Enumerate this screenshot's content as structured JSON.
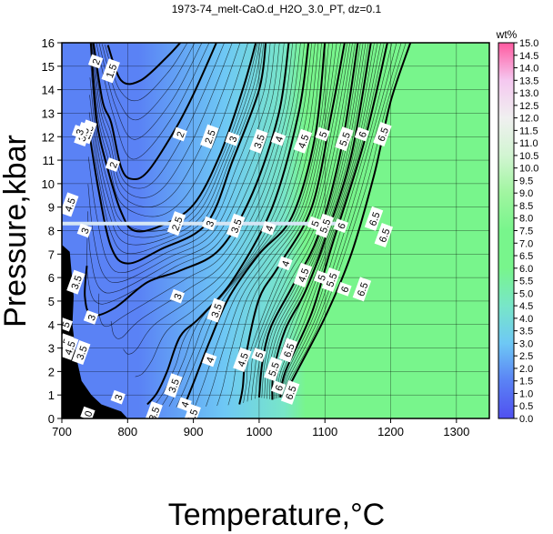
{
  "chart_data": {
    "type": "contour",
    "title": "1973-74_melt-CaO.d_H2O_3.0_PT, dz=0.1",
    "xlabel": "Temperature,°C",
    "ylabel": "Pressure,kbar",
    "xlim": [
      700,
      1350
    ],
    "ylim": [
      0,
      16
    ],
    "x_ticks": [
      "700",
      "800",
      "900",
      "1000",
      "1100",
      "1200",
      "1300"
    ],
    "y_ticks": [
      "0",
      "1",
      "2",
      "3",
      "4",
      "5",
      "6",
      "7",
      "8",
      "9",
      "10",
      "11",
      "12",
      "13",
      "14",
      "15",
      "16"
    ],
    "grid": true,
    "colorbar": {
      "title": "wt%",
      "range": [
        0.0,
        15.0
      ],
      "ticks": [
        "0.0",
        "0.5",
        "1.0",
        "1.5",
        "2.0",
        "2.5",
        "3.0",
        "3.5",
        "4.0",
        "4.5",
        "5.0",
        "5.5",
        "6.0",
        "6.5",
        "7.0",
        "7.5",
        "8.0",
        "8.5",
        "9.0",
        "9.5",
        "10.0",
        "10.5",
        "11.0",
        "11.5",
        "12.0",
        "12.5",
        "13.0",
        "13.5",
        "14.0",
        "14.5",
        "15.0"
      ],
      "colors": [
        "#5050f0",
        "#5a82f5",
        "#6ec8f5",
        "#78e6c8",
        "#78f58c",
        "#78f58c",
        "#a0f5a0",
        "#d2f5d2",
        "#f0f0f0",
        "#f5c8f0",
        "#ff5aa0"
      ]
    },
    "saturation_value": 6.7,
    "contours": [
      {
        "level": "1.5",
        "points": [
          [
            770,
            15.9
          ],
          [
            790,
            14.4
          ],
          [
            820,
            14.4
          ],
          [
            860,
            15.4
          ],
          [
            880,
            16
          ]
        ]
      },
      {
        "level": "2",
        "points": [
          [
            748,
            16
          ],
          [
            762,
            13.5
          ],
          [
            775,
            12.6
          ],
          [
            790,
            10.7
          ],
          [
            806,
            10.2
          ],
          [
            830,
            10.5
          ],
          [
            870,
            12.2
          ],
          [
            900,
            13.8
          ],
          [
            935,
            16
          ]
        ]
      },
      {
        "level": "2.5",
        "points": [
          [
            744,
            16
          ],
          [
            753,
            12.7
          ],
          [
            770,
            10.6
          ],
          [
            790,
            8.8
          ],
          [
            810,
            8.0
          ],
          [
            850,
            8.2
          ],
          [
            900,
            9.1
          ],
          [
            940,
            11.2
          ],
          [
            975,
            14
          ],
          [
            995,
            16
          ]
        ]
      },
      {
        "level": "3",
        "points": [
          [
            741,
            12.3
          ],
          [
            756,
            9.7
          ],
          [
            775,
            7.3
          ],
          [
            800,
            6.6
          ],
          [
            850,
            7.2
          ],
          [
            920,
            8.3
          ],
          [
            960,
            11
          ],
          [
            1000,
            14
          ],
          [
            1010,
            16
          ]
        ]
      },
      {
        "level": "3.5",
        "points": [
          [
            738,
            6.5
          ],
          [
            735,
            5.2
          ],
          [
            745,
            4.4
          ],
          [
            780,
            4.7
          ],
          [
            830,
            5.8
          ],
          [
            880,
            6.3
          ],
          [
            940,
            7.2
          ],
          [
            990,
            9.6
          ],
          [
            1030,
            13
          ],
          [
            1045,
            16
          ]
        ]
      },
      {
        "level": "3.5",
        "points": [
          [
            830,
            0.6
          ],
          [
            845,
            1.1
          ],
          [
            860,
            2.0
          ],
          [
            880,
            3.5
          ],
          [
            910,
            4.3
          ],
          [
            960,
            5.9
          ],
          [
            1020,
            9
          ],
          [
            1060,
            13
          ],
          [
            1075,
            16
          ]
        ]
      },
      {
        "level": "4",
        "points": [
          [
            885,
            0.45
          ],
          [
            900,
            1.5
          ],
          [
            925,
            3.3
          ],
          [
            955,
            5.2
          ],
          [
            1000,
            7.0
          ],
          [
            1050,
            8.6
          ],
          [
            1085,
            12
          ],
          [
            1100,
            16
          ]
        ]
      },
      {
        "level": "4.5",
        "points": [
          [
            970,
            0.6
          ],
          [
            975,
            1.3
          ],
          [
            980,
            2.7
          ],
          [
            1000,
            5.1
          ],
          [
            1030,
            6.5
          ],
          [
            1080,
            9
          ],
          [
            1110,
            13
          ],
          [
            1130,
            16
          ]
        ]
      },
      {
        "level": "5",
        "points": [
          [
            1000,
            0.9
          ],
          [
            1005,
            2.4
          ],
          [
            1018,
            3.9
          ],
          [
            1050,
            5.6
          ],
          [
            1090,
            7.8
          ],
          [
            1125,
            11.5
          ],
          [
            1150,
            16
          ]
        ]
      },
      {
        "level": "5.5",
        "points": [
          [
            1020,
            0.8
          ],
          [
            1022,
            2.0
          ],
          [
            1040,
            3.8
          ],
          [
            1070,
            5.4
          ],
          [
            1100,
            7.6
          ],
          [
            1140,
            11.2
          ],
          [
            1170,
            16
          ]
        ]
      },
      {
        "level": "6",
        "points": [
          [
            1032,
            0.9
          ],
          [
            1040,
            2.0
          ],
          [
            1080,
            4.5
          ],
          [
            1110,
            7.3
          ],
          [
            1160,
            11.8
          ],
          [
            1195,
            16
          ]
        ]
      },
      {
        "level": "6.5",
        "points": [
          [
            1040,
            0.9
          ],
          [
            1050,
            1.6
          ],
          [
            1100,
            4.3
          ],
          [
            1140,
            7.0
          ],
          [
            1175,
            10.4
          ],
          [
            1200,
            13.5
          ],
          [
            1230,
            16
          ]
        ]
      }
    ],
    "labels": [
      {
        "text": "1.5",
        "x": 775,
        "y": 14.8
      },
      {
        "text": "2",
        "x": 752,
        "y": 15.2
      },
      {
        "text": "2",
        "x": 880,
        "y": 12.1
      },
      {
        "text": "2",
        "x": 778,
        "y": 10.8
      },
      {
        "text": "2.5",
        "x": 925,
        "y": 12.0
      },
      {
        "text": "3",
        "x": 960,
        "y": 11.9
      },
      {
        "text": "3.5",
        "x": 1000,
        "y": 11.8
      },
      {
        "text": "4",
        "x": 1030,
        "y": 11.9
      },
      {
        "text": "4.5",
        "x": 1067,
        "y": 11.8
      },
      {
        "text": "5",
        "x": 1097,
        "y": 12.1
      },
      {
        "text": "5.5",
        "x": 1130,
        "y": 11.9
      },
      {
        "text": "6",
        "x": 1157,
        "y": 12.1
      },
      {
        "text": "6.5",
        "x": 1188,
        "y": 12.1
      },
      {
        "text": "2.5",
        "x": 740,
        "y": 12.2
      },
      {
        "text": "3.5",
        "x": 733,
        "y": 12.1
      },
      {
        "text": "3",
        "x": 727,
        "y": 12.2
      },
      {
        "text": "4.5",
        "x": 712,
        "y": 9.1
      },
      {
        "text": "2.5",
        "x": 875,
        "y": 8.3
      },
      {
        "text": "3",
        "x": 925,
        "y": 8.3
      },
      {
        "text": "3.5",
        "x": 965,
        "y": 8.2
      },
      {
        "text": "4",
        "x": 1015,
        "y": 8.1
      },
      {
        "text": "5",
        "x": 1085,
        "y": 8.3
      },
      {
        "text": "5.5",
        "x": 1100,
        "y": 8.2
      },
      {
        "text": "6",
        "x": 1125,
        "y": 8.2
      },
      {
        "text": "6.5",
        "x": 1175,
        "y": 8.5
      },
      {
        "text": "6.5",
        "x": 1190,
        "y": 7.8
      },
      {
        "text": "3",
        "x": 735,
        "y": 8.0
      },
      {
        "text": "3.5",
        "x": 722,
        "y": 5.8
      },
      {
        "text": "3",
        "x": 876,
        "y": 5.2
      },
      {
        "text": "3.5",
        "x": 935,
        "y": 4.6
      },
      {
        "text": "4",
        "x": 1040,
        "y": 6.6
      },
      {
        "text": "4.5",
        "x": 1067,
        "y": 6.1
      },
      {
        "text": "5",
        "x": 1095,
        "y": 6.0
      },
      {
        "text": "5.5",
        "x": 1110,
        "y": 5.9
      },
      {
        "text": "6",
        "x": 1130,
        "y": 5.5
      },
      {
        "text": "6.5",
        "x": 1157,
        "y": 5.5
      },
      {
        "text": "3",
        "x": 745,
        "y": 4.3
      },
      {
        "text": "5",
        "x": 706,
        "y": 4.0
      },
      {
        "text": "4.5",
        "x": 705,
        "y": 3.1
      },
      {
        "text": "4.5",
        "x": 712,
        "y": 3.0
      },
      {
        "text": "3.5",
        "x": 730,
        "y": 2.8
      },
      {
        "text": "4",
        "x": 925,
        "y": 2.5
      },
      {
        "text": "4.5",
        "x": 975,
        "y": 2.5
      },
      {
        "text": "5",
        "x": 1000,
        "y": 2.7
      },
      {
        "text": "5.5",
        "x": 1022,
        "y": 2.1
      },
      {
        "text": "6",
        "x": 1030,
        "y": 1.3
      },
      {
        "text": "6.5",
        "x": 1045,
        "y": 2.9
      },
      {
        "text": "6.5",
        "x": 1048,
        "y": 1.1
      },
      {
        "text": "3.5",
        "x": 870,
        "y": 1.4
      },
      {
        "text": "4",
        "x": 887,
        "y": 0.6
      },
      {
        "text": "4.5",
        "x": 898,
        "y": 0.1
      },
      {
        "text": "3.5",
        "x": 840,
        "y": 0.2
      },
      {
        "text": "3",
        "x": 786,
        "y": 0.9
      },
      {
        "text": "0",
        "x": 740,
        "y": 0.2
      }
    ],
    "highlight_line": {
      "y": 8.3,
      "x_from": 700,
      "x_to": 1130,
      "color": "#d6e6f5"
    }
  }
}
